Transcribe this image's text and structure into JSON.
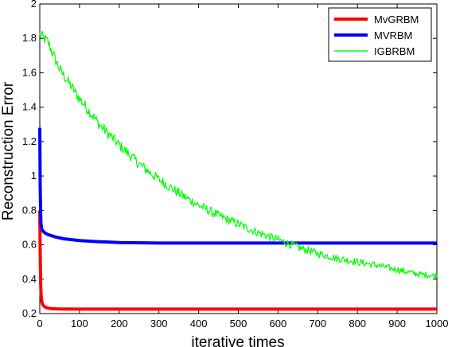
{
  "chart_data": {
    "type": "line",
    "title": "",
    "xlabel": "iterative times",
    "ylabel": "Reconstruction Error",
    "xlim": [
      0,
      1000
    ],
    "ylim": [
      0.2,
      2
    ],
    "xticks": [
      "0",
      "100",
      "200",
      "300",
      "400",
      "500",
      "600",
      "700",
      "800",
      "900",
      "1000"
    ],
    "yticks": [
      "0.2",
      "0.4",
      "0.6",
      "0.8",
      "1",
      "1.2",
      "1.4",
      "1.6",
      "1.8",
      "2"
    ],
    "grid": false,
    "legend_position": "top-right",
    "series": [
      {
        "name": "MvGRBM",
        "color": "#ff0000",
        "noisy": false,
        "x": [
          0,
          1,
          2,
          3,
          5,
          8,
          12,
          20,
          30,
          50,
          100,
          1000
        ],
        "y": [
          0.8,
          0.55,
          0.4,
          0.32,
          0.27,
          0.25,
          0.24,
          0.232,
          0.228,
          0.227,
          0.226,
          0.226
        ]
      },
      {
        "name": "MVRBM",
        "color": "#0000ff",
        "noisy": false,
        "x": [
          0,
          1,
          2,
          3,
          5,
          8,
          12,
          20,
          40,
          60,
          100,
          150,
          200,
          300,
          1000
        ],
        "y": [
          1.28,
          0.95,
          0.8,
          0.72,
          0.69,
          0.68,
          0.67,
          0.66,
          0.645,
          0.635,
          0.625,
          0.618,
          0.613,
          0.61,
          0.61
        ]
      },
      {
        "name": "IGBRBM",
        "color": "#00ff00",
        "noisy": true,
        "x": [
          0,
          20,
          50,
          100,
          150,
          200,
          250,
          300,
          350,
          400,
          450,
          500,
          550,
          600,
          650,
          700,
          750,
          800,
          850,
          900,
          950,
          1000
        ],
        "y": [
          1.82,
          1.78,
          1.62,
          1.45,
          1.3,
          1.18,
          1.07,
          0.98,
          0.9,
          0.83,
          0.77,
          0.72,
          0.67,
          0.63,
          0.585,
          0.55,
          0.52,
          0.5,
          0.48,
          0.455,
          0.43,
          0.42
        ]
      }
    ]
  }
}
